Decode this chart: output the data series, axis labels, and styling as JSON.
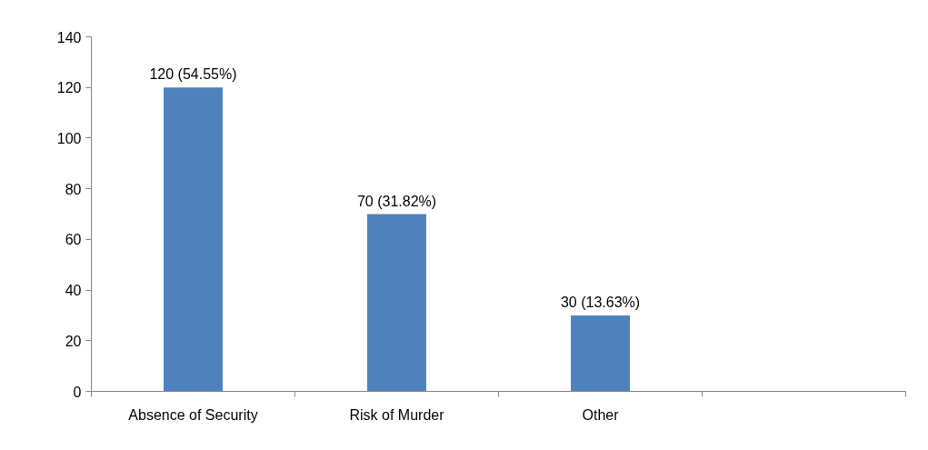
{
  "chart_data": {
    "type": "bar",
    "categories": [
      "Absence of Security",
      "Risk of Murder",
      "Other",
      null
    ],
    "values": [
      120,
      70,
      30,
      null
    ],
    "value_labels": [
      "120 (54.55%)",
      "70 (31.82%)",
      "30 (13.63%)",
      null
    ],
    "color": "#4f81bd",
    "ylim": [
      0,
      140
    ],
    "yticks": [
      0,
      20,
      40,
      60,
      80,
      100,
      120,
      140
    ],
    "grid": false
  }
}
